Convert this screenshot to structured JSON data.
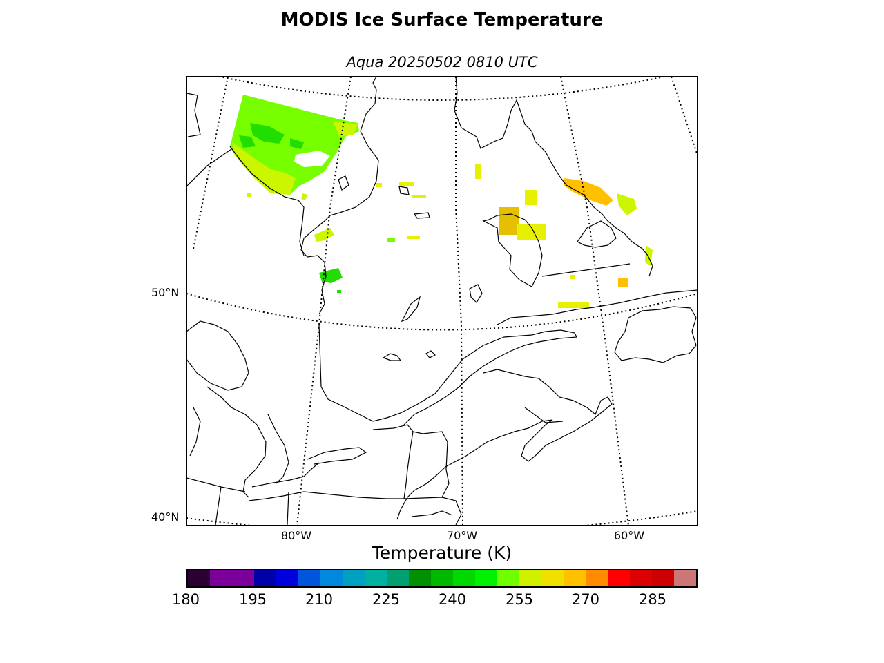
{
  "title": "MODIS Ice Surface Temperature",
  "subtitle": "Aqua 20250502 0810 UTC",
  "map": {
    "lat_labels": [
      "50°N",
      "40°N"
    ],
    "lon_labels": [
      "80°W",
      "70°W",
      "60°W"
    ]
  },
  "colorbar": {
    "label": "Temperature (K)",
    "ticks": [
      "180",
      "195",
      "210",
      "225",
      "240",
      "255",
      "270",
      "285"
    ],
    "colors": [
      "#2a0033",
      "#7a0099",
      "#7a0099",
      "#0000a8",
      "#0000dd",
      "#0055dd",
      "#0088dd",
      "#00a0c0",
      "#00b0a0",
      "#00a070",
      "#009000",
      "#00b800",
      "#00d800",
      "#00f000",
      "#70ff00",
      "#d0f000",
      "#f0e000",
      "#ffc000",
      "#ff8c00",
      "#ff0000",
      "#dd0000",
      "#cc0000",
      "#cc7777"
    ]
  }
}
